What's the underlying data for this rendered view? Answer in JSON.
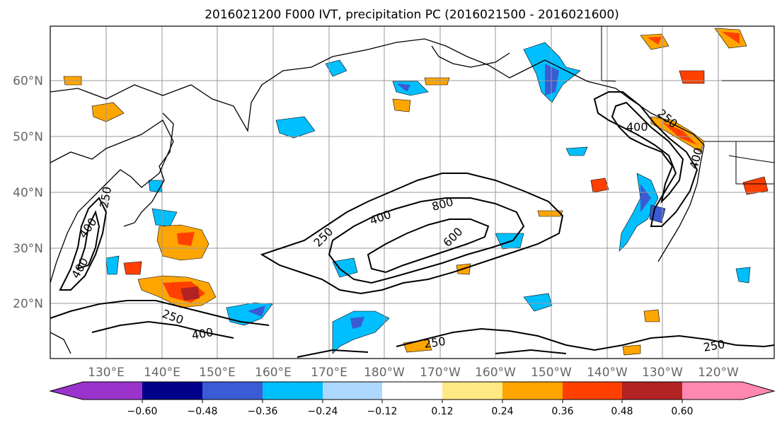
{
  "title": "2016021200 F000 IVT, precipitation PC (2016021500 - 2016021600)",
  "lat_labels": [
    "60°N",
    "50°N",
    "40°N",
    "30°N",
    "20°N"
  ],
  "lon_labels": [
    "130°E",
    "140°E",
    "150°E",
    "160°E",
    "170°E",
    "180°W",
    "170°W",
    "160°W",
    "150°W",
    "140°W",
    "130°W",
    "120°W"
  ],
  "colorbar": {
    "tick_labels": [
      "−0.60",
      "−0.48",
      "−0.36",
      "−0.24",
      "−0.12",
      "0.12",
      "0.24",
      "0.36",
      "0.48",
      "0.60"
    ],
    "colors": [
      "#9933cc",
      "#00008b",
      "#3a5bd4",
      "#00bfff",
      "#add8ff",
      "#ffffff",
      "#ffe985",
      "#ffa500",
      "#ff4000",
      "#b22222",
      "#ff88b0"
    ]
  },
  "contour_labels": [
    "250",
    "400",
    "800",
    "600",
    "250",
    "400",
    "250",
    "400",
    "400",
    "250",
    "250",
    "400",
    "400",
    "250"
  ],
  "map": {
    "region": "North Pacific",
    "fields": [
      "IVT contours",
      "precipitation PC shading"
    ]
  }
}
